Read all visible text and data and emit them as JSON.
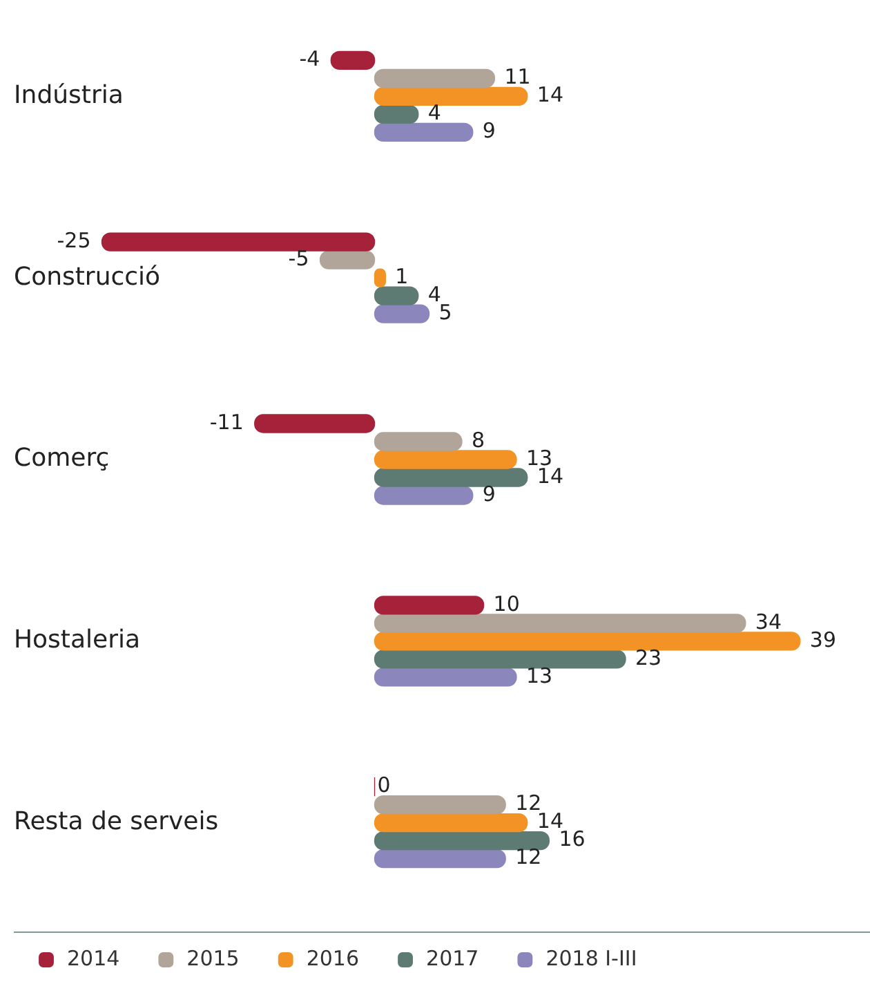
{
  "chart_data": {
    "type": "bar",
    "orientation": "horizontal",
    "categories": [
      "Indústria",
      "Construcció",
      "Comerç",
      "Hostaleria",
      "Resta de serveis"
    ],
    "series": [
      {
        "name": "2014",
        "color": "#a6213a",
        "values": [
          -4,
          -25,
          -11,
          10,
          0
        ]
      },
      {
        "name": "2015",
        "color": "#b1a498",
        "values": [
          11,
          -5,
          8,
          34,
          12
        ]
      },
      {
        "name": "2016",
        "color": "#f39325",
        "values": [
          14,
          1,
          13,
          39,
          14
        ]
      },
      {
        "name": "2017",
        "color": "#5e7b73",
        "values": [
          4,
          4,
          14,
          23,
          16
        ]
      },
      {
        "name": "2018 I-III",
        "color": "#8b86bb",
        "values": [
          9,
          5,
          9,
          13,
          12
        ]
      }
    ],
    "data_labels": true,
    "legend": "bottom",
    "tick_labels": "y"
  }
}
